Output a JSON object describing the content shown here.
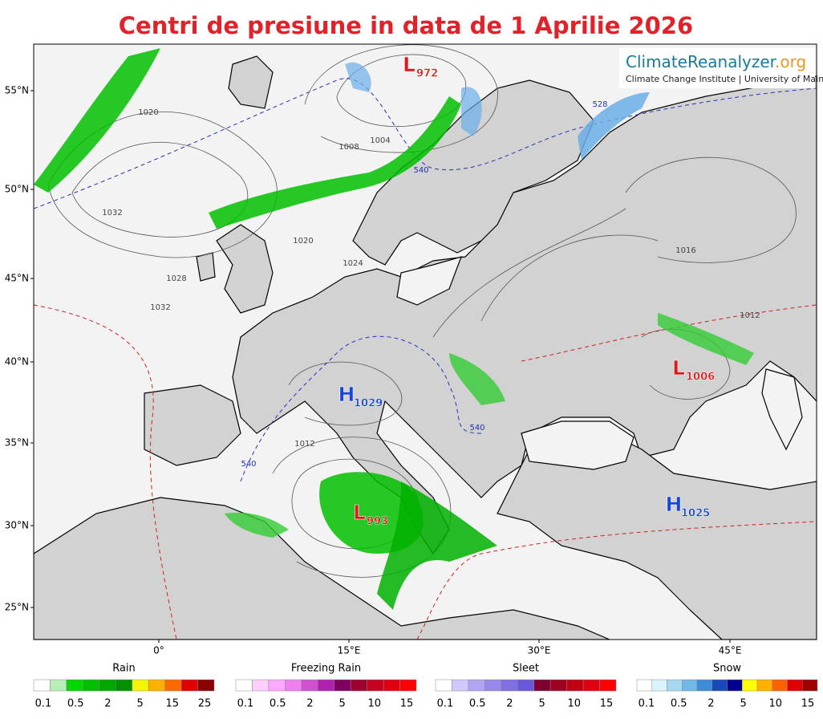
{
  "title": "Centri de presiune in data de 1 Aprilie 2026",
  "logo": {
    "name": "ClimateReanalyzer",
    "domain": ".org",
    "subtitle": "Climate Change Institute | University of Maine"
  },
  "latitude_labels": [
    "55°N",
    "50°N",
    "45°N",
    "40°N",
    "35°N",
    "30°N",
    "25°N"
  ],
  "longitude_labels": [
    "0°",
    "15°E",
    "30°E",
    "45°E"
  ],
  "pressure_centers": [
    {
      "type": "L",
      "value": "972"
    },
    {
      "type": "L",
      "value": "1006"
    },
    {
      "type": "H",
      "value": "1029"
    },
    {
      "type": "L",
      "value": "993"
    },
    {
      "type": "H",
      "value": "1025"
    }
  ],
  "contour_labels": [
    "1020",
    "1032",
    "1028",
    "1032",
    "1020",
    "1024",
    "1016",
    "1012",
    "1012",
    "1004",
    "1008",
    "540",
    "540",
    "540",
    "528"
  ],
  "legends": [
    {
      "title": "Rain",
      "ticks": [
        "0.1",
        "0.5",
        "2",
        "5",
        "15",
        "25"
      ],
      "colors": [
        "#ffffff",
        "#b7efb7",
        "#00d800",
        "#00c000",
        "#00a800",
        "#009000",
        "#f5f500",
        "#ffb000",
        "#ff6a00",
        "#e00000",
        "#8b0000"
      ]
    },
    {
      "title": "Freezing Rain",
      "ticks": [
        "0.1",
        "0.5",
        "2",
        "5",
        "10",
        "15"
      ],
      "colors": [
        "#ffffff",
        "#ffd0ff",
        "#ffa8ff",
        "#f080f0",
        "#d050d0",
        "#b020b0",
        "#800060",
        "#a00030",
        "#c80020",
        "#e00010",
        "#ff0000"
      ]
    },
    {
      "title": "Sleet",
      "ticks": [
        "0.1",
        "0.5",
        "2",
        "5",
        "10",
        "15"
      ],
      "colors": [
        "#ffffff",
        "#d0c8ff",
        "#b0a4f4",
        "#9888ec",
        "#8070e4",
        "#6a58dc",
        "#800030",
        "#a00020",
        "#c00010",
        "#e00010",
        "#ff0000"
      ]
    },
    {
      "title": "Snow",
      "ticks": [
        "0.1",
        "0.5",
        "2",
        "5",
        "10",
        "15"
      ],
      "colors": [
        "#ffffff",
        "#d8f4fc",
        "#a8d8f0",
        "#70b8e8",
        "#3c8cd8",
        "#1848b8",
        "#000090",
        "#ffff00",
        "#ffb000",
        "#ff6000",
        "#e00000",
        "#a00000"
      ]
    }
  ]
}
